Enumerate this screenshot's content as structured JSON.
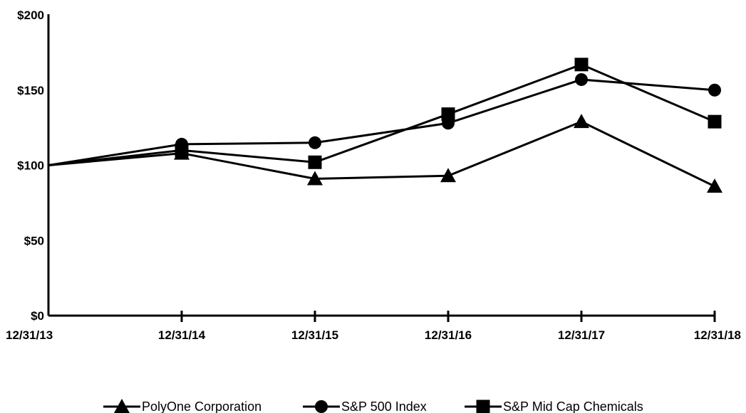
{
  "chart_data": {
    "type": "line",
    "categories": [
      "12/31/13",
      "12/31/14",
      "12/31/15",
      "12/31/16",
      "12/31/17",
      "12/31/18"
    ],
    "y_tick_labels": [
      "$0",
      "$50",
      "$100",
      "$150",
      "$200"
    ],
    "y_ticks": [
      0,
      50,
      100,
      150,
      200
    ],
    "ylim": [
      0,
      200
    ],
    "grid": false,
    "legend_position": "bottom",
    "series": [
      {
        "name": "PolyOne Corporation",
        "marker": "triangle",
        "values": [
          100,
          108,
          91,
          93,
          129,
          86
        ]
      },
      {
        "name": "S&P 500 Index",
        "marker": "circle",
        "values": [
          100,
          114,
          115,
          128,
          157,
          150
        ]
      },
      {
        "name": "S&P Mid Cap Chemicals",
        "marker": "square",
        "values": [
          100,
          110,
          102,
          134,
          167,
          129
        ]
      }
    ],
    "colors": {
      "line": "#000000",
      "background": "#ffffff"
    }
  }
}
